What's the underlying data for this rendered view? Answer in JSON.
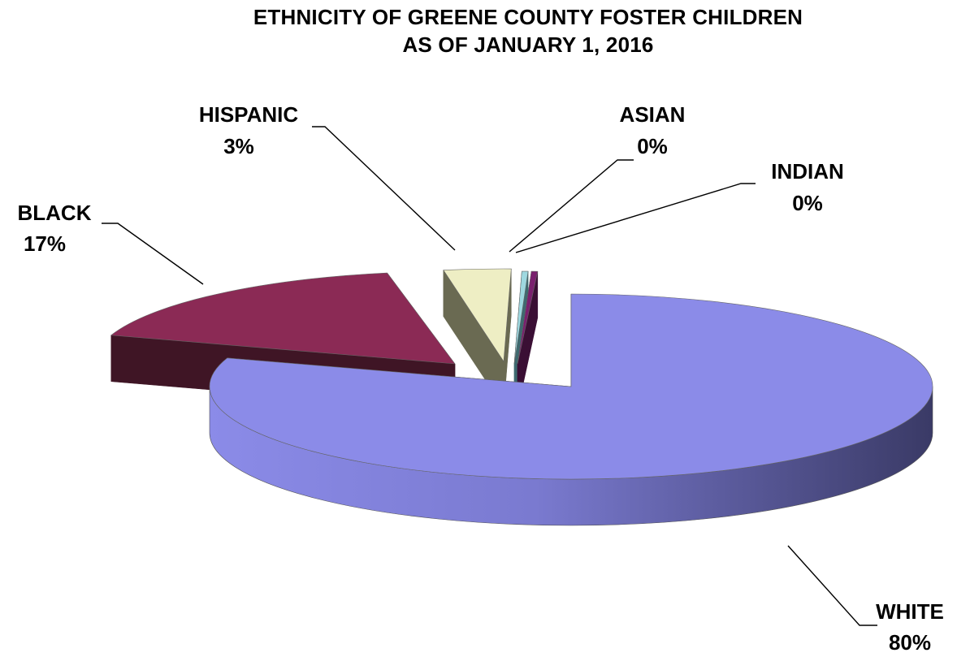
{
  "chart_data": {
    "type": "pie",
    "title_lines": [
      "ETHNICITY OF GREENE COUNTY FOSTER CHILDREN",
      "AS OF JANUARY 1, 2016"
    ],
    "slices": [
      {
        "label": "WHITE",
        "value": 80,
        "value_label": "80%",
        "color": "#8b8be8",
        "side_color": "#3f3f6e"
      },
      {
        "label": "BLACK",
        "value": 17,
        "value_label": "17%",
        "color": "#8b2a55",
        "side_color": "#3f1525"
      },
      {
        "label": "HISPANIC",
        "value": 3,
        "value_label": "3%",
        "color": "#eeeec4",
        "side_color": "#6a6a52"
      },
      {
        "label": "ASIAN",
        "value": 0,
        "value_label": "0%",
        "color": "#9ed8e0",
        "side_color": "#3e6a70"
      },
      {
        "label": "INDIAN",
        "value": 0,
        "value_label": "0%",
        "color": "#7a1f6e",
        "side_color": "#3a0f34"
      }
    ],
    "exploded": true,
    "three_d": true,
    "legend": "none"
  }
}
